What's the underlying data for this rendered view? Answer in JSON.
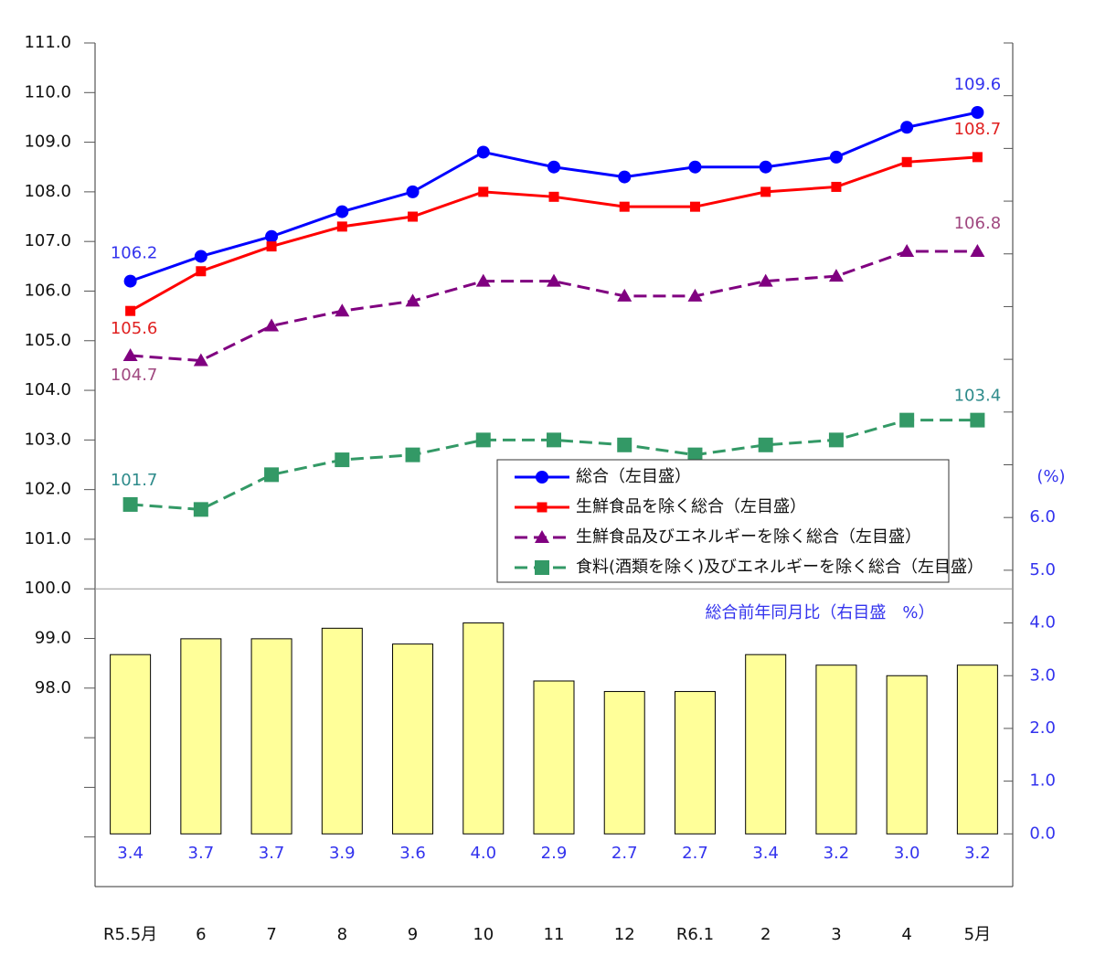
{
  "chart_data": {
    "type": "line_bar",
    "categories": [
      "R5.5月",
      "6",
      "7",
      "8",
      "9",
      "10",
      "11",
      "12",
      "R6.1",
      "2",
      "3",
      "4",
      "5月"
    ],
    "ylim": [
      94,
      111
    ],
    "yticks": [
      {
        "value": 98,
        "label": "98.0"
      },
      {
        "value": 99,
        "label": "99.0"
      },
      {
        "value": 100,
        "label": "100.0"
      },
      {
        "value": 101,
        "label": "101.0"
      },
      {
        "value": 102,
        "label": "102.0"
      },
      {
        "value": 103,
        "label": "103.0"
      },
      {
        "value": 104,
        "label": "104.0"
      },
      {
        "value": 105,
        "label": "105.0"
      },
      {
        "value": 106,
        "label": "106.0"
      },
      {
        "value": 107,
        "label": "107.0"
      },
      {
        "value": 108,
        "label": "108.0"
      },
      {
        "value": 109,
        "label": "109.0"
      },
      {
        "value": 110,
        "label": "110.0"
      },
      {
        "value": 111,
        "label": "111.0"
      }
    ],
    "yminor_ticks": [
      95,
      96,
      97
    ],
    "y2lim": [
      -1,
      15
    ],
    "y2_unit": "(%)",
    "y2ticks": [
      {
        "value": 0,
        "label": "0.0"
      },
      {
        "value": 1,
        "label": "1.0"
      },
      {
        "value": 2,
        "label": "2.0"
      },
      {
        "value": 3,
        "label": "3.0"
      },
      {
        "value": 4,
        "label": "4.0"
      },
      {
        "value": 5,
        "label": "5.0"
      },
      {
        "value": 6,
        "label": "6.0"
      }
    ],
    "y2minor_ticks": [
      7,
      8,
      9,
      10,
      11,
      12,
      13,
      14,
      15
    ],
    "series": [
      {
        "name": "総合（左目盛）",
        "type": "line",
        "marker": "circle",
        "color": "#0000ff",
        "label_color": "#3333ee",
        "dashed": false,
        "values": [
          106.2,
          106.7,
          107.1,
          107.6,
          108.0,
          108.8,
          108.5,
          108.3,
          108.5,
          108.5,
          108.7,
          109.3,
          109.6
        ],
        "value_labels": [
          "106.2",
          null,
          null,
          null,
          null,
          null,
          null,
          null,
          null,
          null,
          null,
          null,
          "109.6"
        ]
      },
      {
        "name": "生鮮食品を除く総合（左目盛）",
        "type": "line",
        "marker": "square",
        "color": "#ff0000",
        "label_color": "#e02020",
        "dashed": false,
        "values": [
          105.6,
          106.4,
          106.9,
          107.3,
          107.5,
          108.0,
          107.9,
          107.7,
          107.7,
          108.0,
          108.1,
          108.6,
          108.7
        ],
        "value_labels": [
          "105.6",
          null,
          null,
          null,
          null,
          null,
          null,
          null,
          null,
          null,
          null,
          null,
          "108.7"
        ]
      },
      {
        "name": "生鮮食品及びエネルギーを除く総合（左目盛）",
        "type": "line",
        "marker": "triangle",
        "color": "#800080",
        "label_color": "#a04880",
        "dashed": true,
        "values": [
          104.7,
          104.6,
          105.3,
          105.6,
          105.8,
          106.2,
          106.2,
          105.9,
          105.9,
          106.2,
          106.3,
          106.8,
          106.8
        ],
        "value_labels": [
          "104.7",
          null,
          null,
          null,
          null,
          null,
          null,
          null,
          null,
          null,
          null,
          null,
          "106.8"
        ]
      },
      {
        "name": "食料(酒類を除く)及びエネルギーを除く総合（左目盛）",
        "type": "line",
        "marker": "bigsquare",
        "color": "#339966",
        "label_color": "#2e8b8b",
        "dashed": true,
        "values": [
          101.7,
          101.6,
          102.3,
          102.6,
          102.7,
          103.0,
          103.0,
          102.9,
          102.7,
          102.9,
          103.0,
          103.4,
          103.4
        ],
        "value_labels": [
          "101.7",
          null,
          null,
          null,
          null,
          null,
          null,
          null,
          null,
          null,
          null,
          null,
          "103.4"
        ]
      },
      {
        "name": "総合前年同月比（右目盛　%）",
        "type": "bar",
        "axis": "y2",
        "color": "#ffff99",
        "label_color": "#3333ee",
        "values": [
          3.4,
          3.7,
          3.7,
          3.9,
          3.6,
          4.0,
          2.9,
          2.7,
          2.7,
          3.4,
          3.2,
          3.0,
          3.2
        ],
        "value_labels": [
          "3.4",
          "3.7",
          "3.7",
          "3.9",
          "3.6",
          "4.0",
          "2.9",
          "2.7",
          "2.7",
          "3.4",
          "3.2",
          "3.0",
          "3.2"
        ]
      }
    ]
  }
}
